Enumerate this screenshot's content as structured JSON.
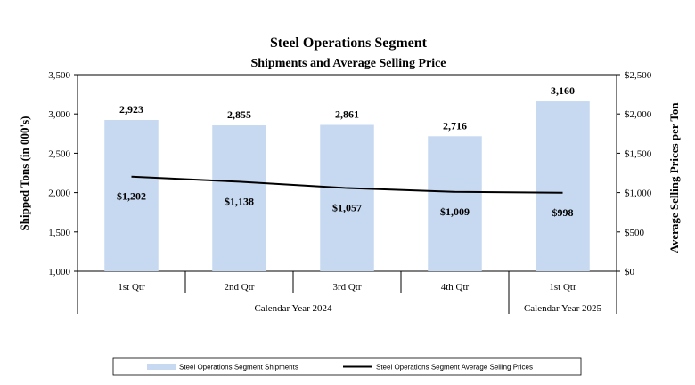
{
  "chart_data": {
    "type": "bar",
    "title": "Steel Operations Segment",
    "subtitle": "Shipments and Average Selling Price",
    "categories": [
      "1st Qtr",
      "2nd Qtr",
      "3rd Qtr",
      "4th Qtr",
      "1st Qtr"
    ],
    "groups": [
      {
        "label": "Calendar Year 2024",
        "count": 4
      },
      {
        "label": "Calendar Year 2025",
        "count": 1
      }
    ],
    "series": [
      {
        "name": "Steel Operations Segment Shipments",
        "type": "bar",
        "axis": "left",
        "color": "#c6d9f1",
        "values": [
          2923,
          2855,
          2861,
          2716,
          3160
        ],
        "labels": [
          "2,923",
          "2,855",
          "2,861",
          "2,716",
          "3,160"
        ]
      },
      {
        "name": "Steel Operations Segment Average Selling Prices",
        "type": "line",
        "axis": "right",
        "color": "#000000",
        "values": [
          1202,
          1138,
          1057,
          1009,
          998
        ],
        "labels": [
          "$1,202",
          "$1,138",
          "$1,057",
          "$1,009",
          "$998"
        ]
      }
    ],
    "ylabel": "Shipped Tons (in 000's)",
    "ylim": [
      1000,
      3500
    ],
    "yticks": [
      "1,000",
      "1,500",
      "2,000",
      "2,500",
      "3,000",
      "3,500"
    ],
    "y2label": "Average Selling Prices per Ton",
    "y2lim": [
      0,
      2500
    ],
    "y2ticks": [
      "$0",
      "$500",
      "$1,000",
      "$1,500",
      "$2,000",
      "$2,500"
    ],
    "legend_position": "bottom"
  }
}
